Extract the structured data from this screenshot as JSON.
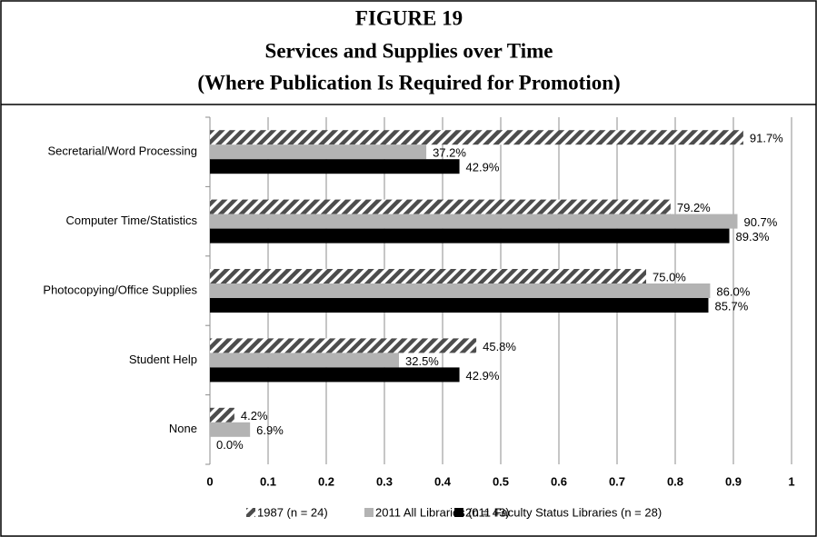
{
  "chart_data": {
    "type": "bar",
    "orientation": "horizontal",
    "title_lines": [
      "FIGURE 19",
      "Services and Supplies over Time",
      "(Where Publication Is Required for Promotion)"
    ],
    "categories": [
      "Secretarial/Word Processing",
      "Computer Time/Statistics",
      "Photocopying/Office Supplies",
      "Student Help",
      "None"
    ],
    "series": [
      {
        "name": "1987 (n = 24)",
        "color": "#4d4d4d",
        "pattern": "diagonal-hatch",
        "values": [
          0.917,
          0.792,
          0.75,
          0.458,
          0.042
        ],
        "value_labels": [
          "91.7%",
          "79.2%",
          "75.0%",
          "45.8%",
          "4.2%"
        ]
      },
      {
        "name": "2011 All Libraries (n = 43)",
        "color": "#b3b3b3",
        "values": [
          0.372,
          0.907,
          0.86,
          0.325,
          0.069
        ],
        "value_labels": [
          "37.2%",
          "90.7%",
          "86.0%",
          "32.5%",
          "6.9%"
        ]
      },
      {
        "name": "2011 Faculty Status Libraries (n = 28)",
        "color": "#000000",
        "values": [
          0.429,
          0.893,
          0.857,
          0.429,
          0
        ],
        "value_labels": [
          "42.9%",
          "89.3%",
          "85.7%",
          "42.9%",
          "0.0%"
        ]
      }
    ],
    "xlim": [
      0,
      1
    ],
    "xticks": [
      0,
      0.1,
      0.2,
      0.3,
      0.4,
      0.5,
      0.6,
      0.7,
      0.8,
      0.9,
      1
    ],
    "grid": true,
    "legend": "bottom"
  }
}
